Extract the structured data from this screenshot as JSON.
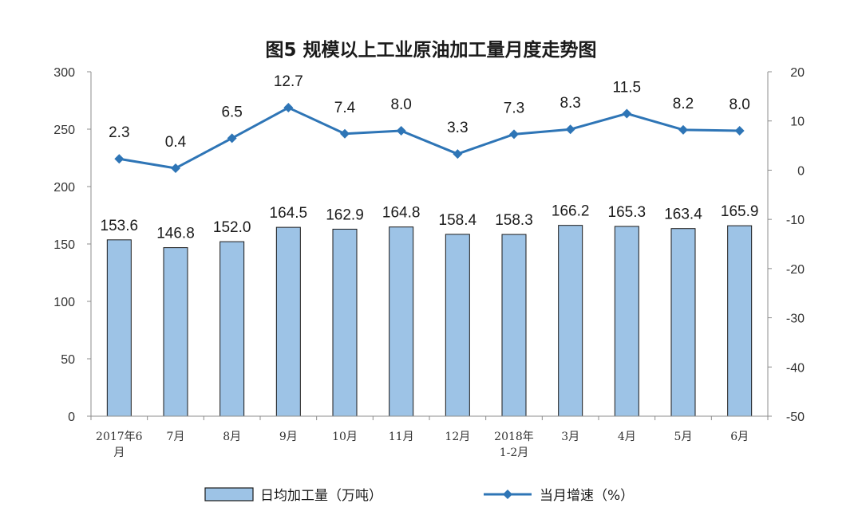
{
  "chart_data": {
    "type": "bar",
    "title": "图5  规模以上工业原油加工量月度走势图",
    "categories": [
      "2017年6月",
      "7月",
      "8月",
      "9月",
      "10月",
      "11月",
      "12月",
      "2018年1-2月",
      "3月",
      "4月",
      "5月",
      "6月"
    ],
    "category_lines": [
      [
        "2017年6",
        "月"
      ],
      [
        "7月"
      ],
      [
        "8月"
      ],
      [
        "9月"
      ],
      [
        "10月"
      ],
      [
        "11月"
      ],
      [
        "12月"
      ],
      [
        "2018年",
        "1-2月"
      ],
      [
        "3月"
      ],
      [
        "4月"
      ],
      [
        "5月"
      ],
      [
        "6月"
      ]
    ],
    "series": [
      {
        "name": "日均加工量（万吨）",
        "type": "bar",
        "axis": "left",
        "color": "#9dc3e6",
        "values": [
          153.6,
          146.8,
          152.0,
          164.5,
          162.9,
          164.8,
          158.4,
          158.3,
          166.2,
          165.3,
          163.4,
          165.9
        ],
        "labels": [
          "153.6",
          "146.8",
          "152.0",
          "164.5",
          "162.9",
          "164.8",
          "158.4",
          "158.3",
          "166.2",
          "165.3",
          "163.4",
          "165.9"
        ]
      },
      {
        "name": "当月增速（%）",
        "type": "line",
        "axis": "right",
        "color": "#2e75b6",
        "values": [
          2.3,
          0.4,
          6.5,
          12.7,
          7.4,
          8.0,
          3.3,
          7.3,
          8.3,
          11.5,
          8.2,
          8.0
        ],
        "labels": [
          "2.3",
          "0.4",
          "6.5",
          "12.7",
          "7.4",
          "8.0",
          "3.3",
          "7.3",
          "8.3",
          "11.5",
          "8.2",
          "8.0"
        ]
      }
    ],
    "y_left": {
      "ylim": [
        0,
        300
      ],
      "ticks": [
        "0",
        "50",
        "100",
        "150",
        "200",
        "250",
        "300"
      ]
    },
    "y_right": {
      "ylim": [
        -50,
        20
      ],
      "ticks": [
        "-50",
        "-40",
        "-30",
        "-20",
        "-10",
        "0",
        "10",
        "20"
      ]
    },
    "grid": false,
    "legend_position": "bottom"
  }
}
